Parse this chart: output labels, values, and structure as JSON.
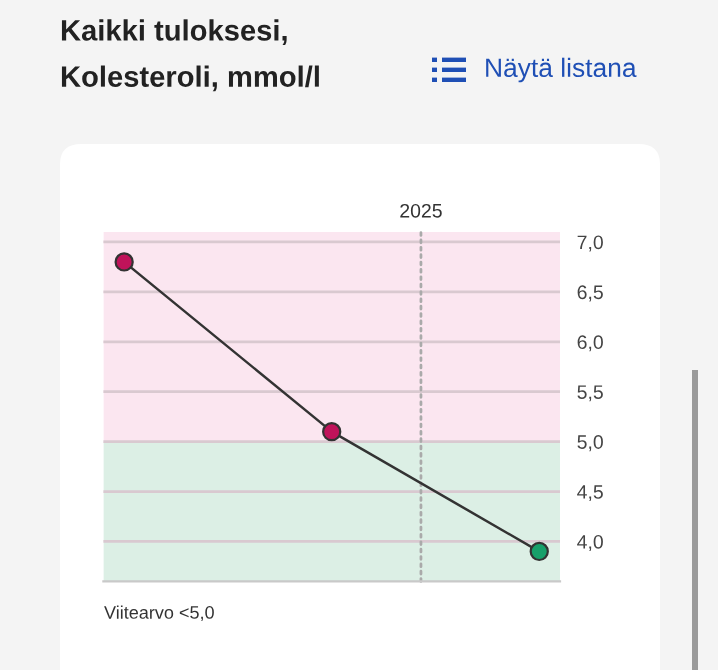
{
  "chart_data": {
    "type": "line",
    "title": "Kaikki tuloksesi,\nKolesteroli, mmol/l",
    "annotations": [
      "Näytä listana",
      "Viitearvo <5,0",
      "2025"
    ],
    "categories": [
      null,
      null,
      null
    ],
    "series": [
      {
        "color": "#333333",
        "colors": [
          "#c0135a",
          "#c0135a",
          "#17a06a"
        ],
        "values": [
          6.8,
          5.1,
          3.9
        ]
      }
    ],
    "marker": "circle",
    "line_style": "solid",
    "ylim": [
      3.6,
      7.1
    ],
    "yticks": [
      {
        "value": 4.0,
        "label": "4,0"
      },
      {
        "value": 4.5,
        "label": "4,5"
      },
      {
        "value": 5.0,
        "label": "5,0"
      },
      {
        "value": 5.5,
        "label": "5,5"
      },
      {
        "value": 6.0,
        "label": "6,0"
      },
      {
        "value": 6.5,
        "label": "6,5"
      },
      {
        "value": 7.0,
        "label": "7,0"
      }
    ],
    "tick_labels": "y",
    "grid": "y",
    "legend": false,
    "bands": [
      {
        "axis": "y",
        "from": 5.0,
        "to": 7.1,
        "color": "#fbe6f0"
      },
      {
        "axis": "y",
        "from": 3.6,
        "to": 5.0,
        "color": "#dcefe5"
      }
    ]
  }
}
